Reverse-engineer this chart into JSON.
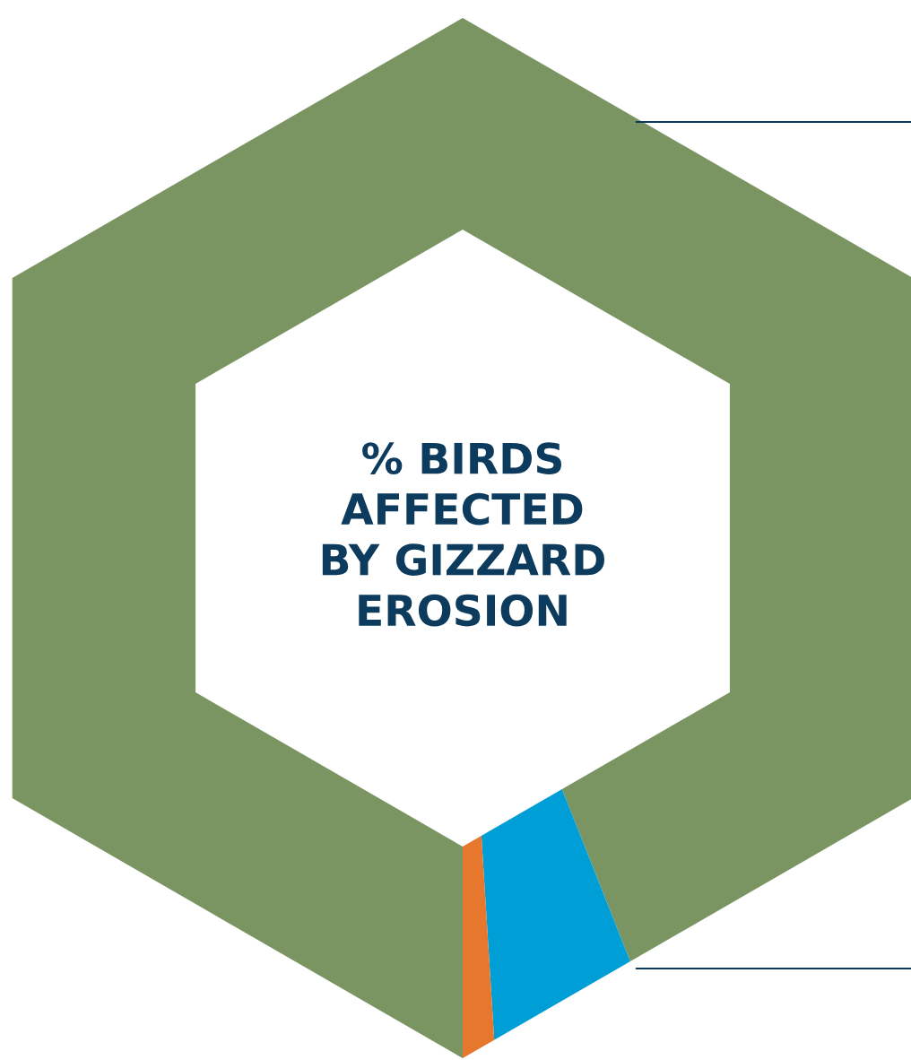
{
  "chart_data": {
    "type": "donut",
    "title": "% BIRDS\nAFFECTED\nBY GIZZARD\nEROSION",
    "categories": [
      null,
      null,
      null
    ],
    "values": [
      94,
      5,
      1
    ],
    "colors": [
      "#7a9462",
      "#009ed6",
      "#e8772e"
    ]
  }
}
